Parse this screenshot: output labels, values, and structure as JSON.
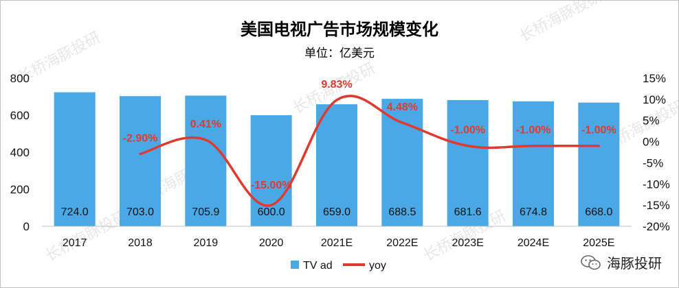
{
  "chart_data": {
    "type": "bar",
    "title": "美国电视广告市场规模变化",
    "subtitle": "单位：亿美元",
    "categories": [
      "2017",
      "2018",
      "2019",
      "2020",
      "2021E",
      "2022E",
      "2023E",
      "2024E",
      "2025E"
    ],
    "series": [
      {
        "name": "TV ad",
        "type": "bar",
        "axis": "left",
        "color": "#4BA8E6",
        "values": [
          724.0,
          703.0,
          705.9,
          600.0,
          659.0,
          688.5,
          681.6,
          674.8,
          668.0
        ],
        "labels": [
          "724.0",
          "703.0",
          "705.9",
          "600.0",
          "659.0",
          "688.5",
          "681.6",
          "674.8",
          "668.0"
        ]
      },
      {
        "name": "yoy",
        "type": "line",
        "axis": "right",
        "color": "#E03A2E",
        "values": [
          null,
          -2.9,
          0.41,
          -15.0,
          9.83,
          4.48,
          -1.0,
          -1.0,
          -1.0
        ],
        "labels": [
          "",
          "-2.90%",
          "0.41%",
          "-15.00%",
          "9.83%",
          "4.48%",
          "-1.00%",
          "-1.00%",
          "-1.00%"
        ]
      }
    ],
    "left_axis": {
      "min": 0,
      "max": 800,
      "ticks": [
        "0",
        "200",
        "400",
        "600",
        "800"
      ]
    },
    "right_axis": {
      "min": -20,
      "max": 15,
      "ticks": [
        "15%",
        "10%",
        "5%",
        "0%",
        "-5%",
        "-10%",
        "-15%",
        "-20%"
      ]
    },
    "legend": {
      "position": "bottom",
      "items": [
        "TV ad",
        "yoy"
      ]
    },
    "grid": false
  },
  "watermark": "长桥海豚投研",
  "brand": {
    "text": "海豚投研",
    "icon": "wechat-icon"
  }
}
